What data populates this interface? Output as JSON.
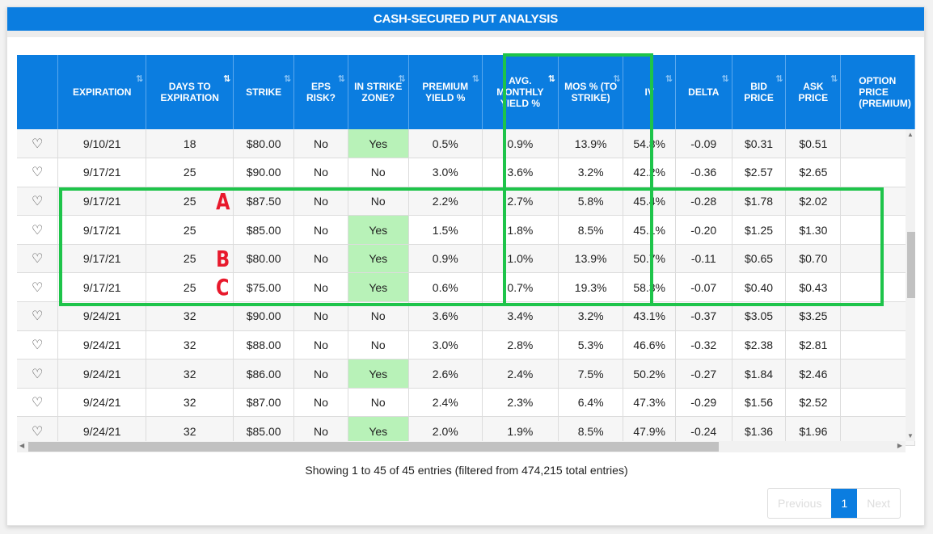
{
  "panel": {
    "title": "CASH-SECURED PUT ANALYSIS"
  },
  "table": {
    "columns": [
      {
        "label": "",
        "sort": ""
      },
      {
        "label": "EXPIRATION",
        "sort": "both"
      },
      {
        "label": "DAYS TO EXPIRATION",
        "sort": "asc-active"
      },
      {
        "label": "STRIKE",
        "sort": "both"
      },
      {
        "label": "EPS RISK?",
        "sort": "both"
      },
      {
        "label": "IN STRIKE ZONE?",
        "sort": "both"
      },
      {
        "label": "PREMIUM YIELD %",
        "sort": "both"
      },
      {
        "label": "AVG. MONTHLY YIELD %",
        "sort": "desc-active"
      },
      {
        "label": "MOS % (TO STRIKE)",
        "sort": "both"
      },
      {
        "label": "IV",
        "sort": "both"
      },
      {
        "label": "DELTA",
        "sort": "both"
      },
      {
        "label": "BID PRICE",
        "sort": "both"
      },
      {
        "label": "ASK PRICE",
        "sort": "both"
      },
      {
        "label": "OPTION PRICE (PREMIUM)",
        "sort": ""
      }
    ],
    "sort_icon": "⇅",
    "heart_icon": "♡",
    "rows": [
      {
        "expiration": "9/10/21",
        "days": "18",
        "strike": "$80.00",
        "eps_risk": "No",
        "in_zone": "Yes",
        "premium_yield": "0.5%",
        "avg_monthly": "0.9%",
        "mos": "13.9%",
        "iv": "54.8%",
        "delta": "-0.09",
        "bid": "$0.31",
        "ask": "$0.51",
        "marker": ""
      },
      {
        "expiration": "9/17/21",
        "days": "25",
        "strike": "$90.00",
        "eps_risk": "No",
        "in_zone": "No",
        "premium_yield": "3.0%",
        "avg_monthly": "3.6%",
        "mos": "3.2%",
        "iv": "42.2%",
        "delta": "-0.36",
        "bid": "$2.57",
        "ask": "$2.65",
        "marker": ""
      },
      {
        "expiration": "9/17/21",
        "days": "25",
        "strike": "$87.50",
        "eps_risk": "No",
        "in_zone": "No",
        "premium_yield": "2.2%",
        "avg_monthly": "2.7%",
        "mos": "5.8%",
        "iv": "45.4%",
        "delta": "-0.28",
        "bid": "$1.78",
        "ask": "$2.02",
        "marker": "A"
      },
      {
        "expiration": "9/17/21",
        "days": "25",
        "strike": "$85.00",
        "eps_risk": "No",
        "in_zone": "Yes",
        "premium_yield": "1.5%",
        "avg_monthly": "1.8%",
        "mos": "8.5%",
        "iv": "45.1%",
        "delta": "-0.20",
        "bid": "$1.25",
        "ask": "$1.30",
        "marker": ""
      },
      {
        "expiration": "9/17/21",
        "days": "25",
        "strike": "$80.00",
        "eps_risk": "No",
        "in_zone": "Yes",
        "premium_yield": "0.9%",
        "avg_monthly": "1.0%",
        "mos": "13.9%",
        "iv": "50.7%",
        "delta": "-0.11",
        "bid": "$0.65",
        "ask": "$0.70",
        "marker": "B"
      },
      {
        "expiration": "9/17/21",
        "days": "25",
        "strike": "$75.00",
        "eps_risk": "No",
        "in_zone": "Yes",
        "premium_yield": "0.6%",
        "avg_monthly": "0.7%",
        "mos": "19.3%",
        "iv": "58.3%",
        "delta": "-0.07",
        "bid": "$0.40",
        "ask": "$0.43",
        "marker": "C"
      },
      {
        "expiration": "9/24/21",
        "days": "32",
        "strike": "$90.00",
        "eps_risk": "No",
        "in_zone": "No",
        "premium_yield": "3.6%",
        "avg_monthly": "3.4%",
        "mos": "3.2%",
        "iv": "43.1%",
        "delta": "-0.37",
        "bid": "$3.05",
        "ask": "$3.25",
        "marker": ""
      },
      {
        "expiration": "9/24/21",
        "days": "32",
        "strike": "$88.00",
        "eps_risk": "No",
        "in_zone": "No",
        "premium_yield": "3.0%",
        "avg_monthly": "2.8%",
        "mos": "5.3%",
        "iv": "46.6%",
        "delta": "-0.32",
        "bid": "$2.38",
        "ask": "$2.81",
        "marker": ""
      },
      {
        "expiration": "9/24/21",
        "days": "32",
        "strike": "$86.00",
        "eps_risk": "No",
        "in_zone": "Yes",
        "premium_yield": "2.6%",
        "avg_monthly": "2.4%",
        "mos": "7.5%",
        "iv": "50.2%",
        "delta": "-0.27",
        "bid": "$1.84",
        "ask": "$2.46",
        "marker": ""
      },
      {
        "expiration": "9/24/21",
        "days": "32",
        "strike": "$87.00",
        "eps_risk": "No",
        "in_zone": "No",
        "premium_yield": "2.4%",
        "avg_monthly": "2.3%",
        "mos": "6.4%",
        "iv": "47.3%",
        "delta": "-0.29",
        "bid": "$1.56",
        "ask": "$2.52",
        "marker": ""
      },
      {
        "expiration": "9/24/21",
        "days": "32",
        "strike": "$85.00",
        "eps_risk": "No",
        "in_zone": "Yes",
        "premium_yield": "2.0%",
        "avg_monthly": "1.9%",
        "mos": "8.5%",
        "iv": "47.9%",
        "delta": "-0.24",
        "bid": "$1.36",
        "ask": "$1.96",
        "marker": ""
      }
    ]
  },
  "footer": {
    "info": "Showing 1 to 45 of 45 entries (filtered from 474,215 total entries)",
    "pagination": {
      "previous": "Previous",
      "current": "1",
      "next": "Next"
    }
  },
  "colors": {
    "header_blue": "#0b7de0",
    "highlight_green": "#1ec44a",
    "zone_yes_bg": "#b8f2b8",
    "marker_red": "#e8192c"
  }
}
